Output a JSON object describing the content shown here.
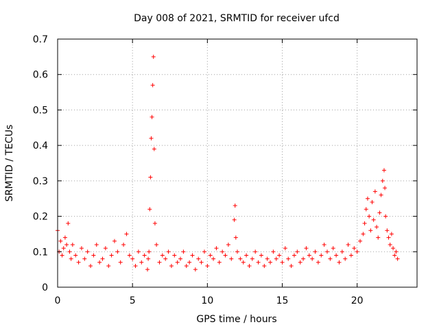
{
  "chart_data": {
    "type": "scatter",
    "title": "Day 008 of 2021, SRMTID for receiver ufcd",
    "xlabel": "GPS time / hours",
    "ylabel": "SRMTID / TECUs",
    "xlim": [
      0,
      24
    ],
    "ylim": [
      0,
      0.7
    ],
    "x_ticks": [
      0,
      5,
      10,
      15,
      20
    ],
    "x_tick_labels": [
      "0",
      "5",
      "10",
      "15",
      "20"
    ],
    "y_ticks": [
      0,
      0.1,
      0.2,
      0.3,
      0.4,
      0.5,
      0.6,
      0.7
    ],
    "y_tick_labels": [
      "0",
      "0.1",
      "0.2",
      "0.3",
      "0.4",
      "0.5",
      "0.6",
      "0.7"
    ],
    "grid": true,
    "marker": "+",
    "series": [
      {
        "name": "SRMTID",
        "color": "#ff0000",
        "x": [
          0.0,
          0.1,
          0.2,
          0.3,
          0.4,
          0.5,
          0.6,
          0.7,
          0.8,
          0.9,
          1.0,
          1.2,
          1.4,
          1.6,
          1.8,
          2.0,
          2.2,
          2.4,
          2.6,
          2.8,
          3.0,
          3.2,
          3.4,
          3.6,
          3.8,
          4.0,
          4.2,
          4.4,
          4.6,
          4.8,
          5.0,
          5.2,
          5.4,
          5.6,
          5.8,
          6.0,
          6.05,
          6.1,
          6.15,
          6.2,
          6.25,
          6.3,
          6.35,
          6.4,
          6.45,
          6.5,
          6.6,
          6.8,
          7.0,
          7.2,
          7.4,
          7.6,
          7.8,
          8.0,
          8.2,
          8.4,
          8.6,
          8.8,
          9.0,
          9.2,
          9.4,
          9.6,
          9.8,
          10.0,
          10.2,
          10.4,
          10.6,
          10.8,
          11.0,
          11.2,
          11.4,
          11.6,
          11.8,
          11.85,
          11.9,
          12.0,
          12.2,
          12.4,
          12.6,
          12.8,
          13.0,
          13.2,
          13.4,
          13.6,
          13.8,
          14.0,
          14.2,
          14.4,
          14.6,
          14.8,
          15.0,
          15.2,
          15.4,
          15.6,
          15.8,
          16.0,
          16.2,
          16.4,
          16.6,
          16.8,
          17.0,
          17.2,
          17.4,
          17.6,
          17.8,
          18.0,
          18.2,
          18.4,
          18.6,
          18.8,
          19.0,
          19.2,
          19.4,
          19.6,
          19.8,
          20.0,
          20.2,
          20.4,
          20.5,
          20.6,
          20.7,
          20.8,
          20.9,
          21.0,
          21.1,
          21.2,
          21.3,
          21.4,
          21.5,
          21.6,
          21.7,
          21.8,
          21.85,
          21.9,
          22.0,
          22.1,
          22.2,
          22.3,
          22.4,
          22.5,
          22.6,
          22.7
        ],
        "y": [
          0.16,
          0.1,
          0.13,
          0.09,
          0.11,
          0.14,
          0.12,
          0.18,
          0.1,
          0.08,
          0.12,
          0.09,
          0.07,
          0.11,
          0.08,
          0.1,
          0.06,
          0.09,
          0.12,
          0.07,
          0.08,
          0.11,
          0.06,
          0.09,
          0.13,
          0.1,
          0.07,
          0.12,
          0.15,
          0.09,
          0.08,
          0.06,
          0.1,
          0.07,
          0.09,
          0.05,
          0.08,
          0.1,
          0.22,
          0.31,
          0.42,
          0.48,
          0.57,
          0.65,
          0.39,
          0.18,
          0.12,
          0.07,
          0.09,
          0.08,
          0.1,
          0.06,
          0.09,
          0.07,
          0.08,
          0.1,
          0.06,
          0.07,
          0.09,
          0.05,
          0.08,
          0.07,
          0.1,
          0.06,
          0.09,
          0.08,
          0.11,
          0.07,
          0.1,
          0.09,
          0.12,
          0.08,
          0.19,
          0.23,
          0.14,
          0.1,
          0.08,
          0.07,
          0.09,
          0.06,
          0.08,
          0.1,
          0.07,
          0.09,
          0.06,
          0.08,
          0.07,
          0.1,
          0.08,
          0.09,
          0.07,
          0.11,
          0.08,
          0.06,
          0.09,
          0.1,
          0.07,
          0.08,
          0.11,
          0.09,
          0.08,
          0.1,
          0.07,
          0.09,
          0.12,
          0.1,
          0.08,
          0.11,
          0.09,
          0.07,
          0.1,
          0.08,
          0.12,
          0.09,
          0.11,
          0.1,
          0.13,
          0.15,
          0.18,
          0.22,
          0.25,
          0.2,
          0.16,
          0.24,
          0.19,
          0.27,
          0.17,
          0.14,
          0.21,
          0.26,
          0.3,
          0.33,
          0.28,
          0.2,
          0.16,
          0.14,
          0.12,
          0.15,
          0.11,
          0.09,
          0.1,
          0.08
        ]
      }
    ]
  }
}
